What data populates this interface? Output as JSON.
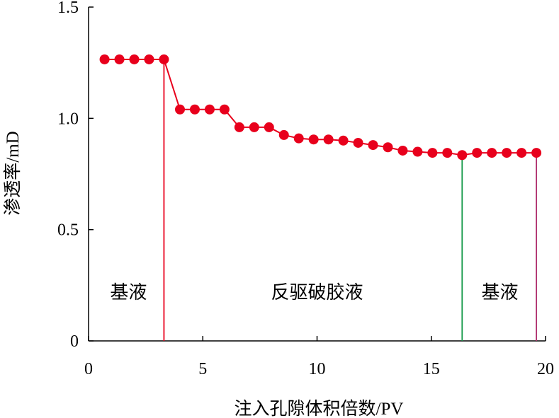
{
  "chart_data": {
    "type": "line",
    "xlabel": "注入孔隙体积倍数/PV",
    "ylabel": "渗透率/mD",
    "xlim": [
      0,
      20
    ],
    "ylim": [
      0,
      1.5
    ],
    "x_ticks": [
      {
        "value": 0,
        "label": "0"
      },
      {
        "value": 5,
        "label": "5"
      },
      {
        "value": 10,
        "label": "10"
      },
      {
        "value": 15,
        "label": "15"
      },
      {
        "value": 20,
        "label": "20"
      }
    ],
    "y_ticks": [
      {
        "value": 0,
        "label": "0"
      },
      {
        "value": 0.5,
        "label": "0.5"
      },
      {
        "value": 1.0,
        "label": "1.0"
      },
      {
        "value": 1.5,
        "label": "1.5"
      }
    ],
    "grid": false,
    "legend": "none",
    "series": [
      {
        "color": "#e8001c",
        "marker": "circle",
        "x": [
          0.7,
          1.35,
          2.0,
          2.65,
          3.3,
          4.0,
          4.65,
          5.3,
          5.95,
          6.6,
          7.25,
          7.9,
          8.55,
          9.2,
          9.85,
          10.5,
          11.15,
          11.8,
          12.45,
          13.1,
          13.75,
          14.4,
          15.05,
          15.7,
          16.35,
          17.0,
          17.65,
          18.3,
          18.95,
          19.6
        ],
        "values": [
          1.265,
          1.265,
          1.265,
          1.265,
          1.265,
          1.04,
          1.04,
          1.04,
          1.04,
          0.96,
          0.96,
          0.96,
          0.925,
          0.91,
          0.905,
          0.905,
          0.9,
          0.89,
          0.88,
          0.87,
          0.855,
          0.85,
          0.845,
          0.845,
          0.835,
          0.845,
          0.845,
          0.845,
          0.845,
          0.845
        ]
      }
    ],
    "vertical_lines": [
      {
        "x": 3.3,
        "color": "#e8001c"
      },
      {
        "x": 16.35,
        "color": "#169a4a"
      },
      {
        "x": 19.6,
        "color": "#b0306e"
      }
    ],
    "annotations": [
      {
        "text": "基液",
        "x": 1.75,
        "y": 0.22
      },
      {
        "text": "反驱破胶液",
        "x": 10.0,
        "y": 0.22
      },
      {
        "text": "基液",
        "x": 18.0,
        "y": 0.22
      }
    ]
  }
}
